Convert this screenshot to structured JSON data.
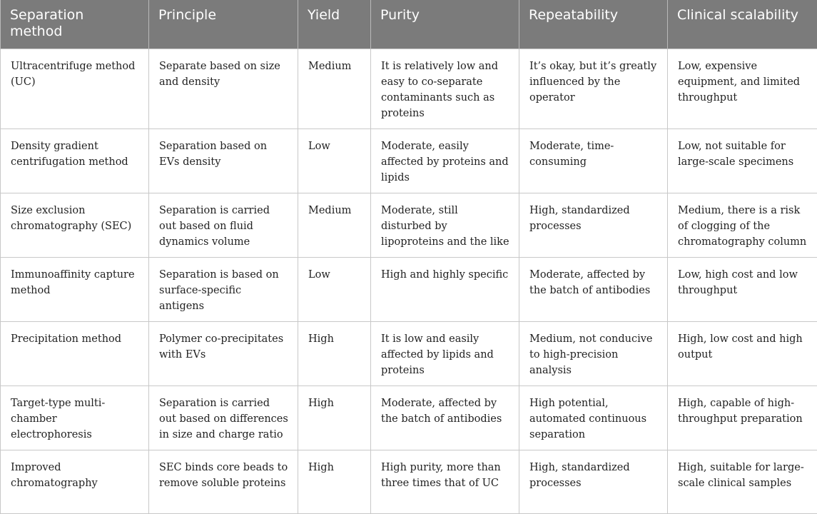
{
  "headers": [
    "Separation method",
    "Principle",
    "Yield",
    "Purity",
    "Repeatability",
    "Clinical scalability"
  ],
  "rows": [
    [
      "Ultracentrifuge method (UC)",
      "Separate based on size and density",
      "Medium",
      "It is relatively low and easy to co-separate contaminants such as proteins",
      "It’s okay, but it’s greatly influenced by the operator",
      "Low, expensive equipment, and limited throughput"
    ],
    [
      "Density gradient centrifugation method",
      "Separation based on EVs density",
      "Low",
      "Moderate, easily affected by proteins and lipids",
      "Moderate, time-consuming",
      "Low, not suitable for large-scale specimens"
    ],
    [
      "Size exclusion chromatography (SEC)",
      "Separation is carried out based on fluid dynamics volume",
      "Medium",
      "Moderate, still disturbed by lipoproteins and the like",
      "High, standardized processes",
      "Medium, there is a risk of clogging of the chromatography column"
    ],
    [
      "Immunoaffinity capture method",
      "Separation is based on surface-specific antigens",
      "Low",
      "High and highly specific",
      "Moderate, affected by the batch of antibodies",
      "Low, high cost and low throughput"
    ],
    [
      "Precipitation method",
      "Polymer co-precipitates with EVs",
      "High",
      "It is low and easily affected by lipids and proteins",
      "Medium, not conducive to high-precision analysis",
      "High, low cost and high output"
    ],
    [
      "Target-type multi-chamber electrophoresis",
      "Separation is carried out based on differences in size and charge ratio",
      "High",
      "Moderate, affected by the batch of antibodies",
      "High potential, automated continuous separation",
      "High, capable of high-throughput preparation"
    ],
    [
      "Improved chromatography",
      "SEC binds core beads to remove soluble proteins",
      "High",
      "High purity, more than three times that of UC",
      "High, standardized processes",
      "High, suitable for large-scale clinical samples"
    ]
  ]
}
